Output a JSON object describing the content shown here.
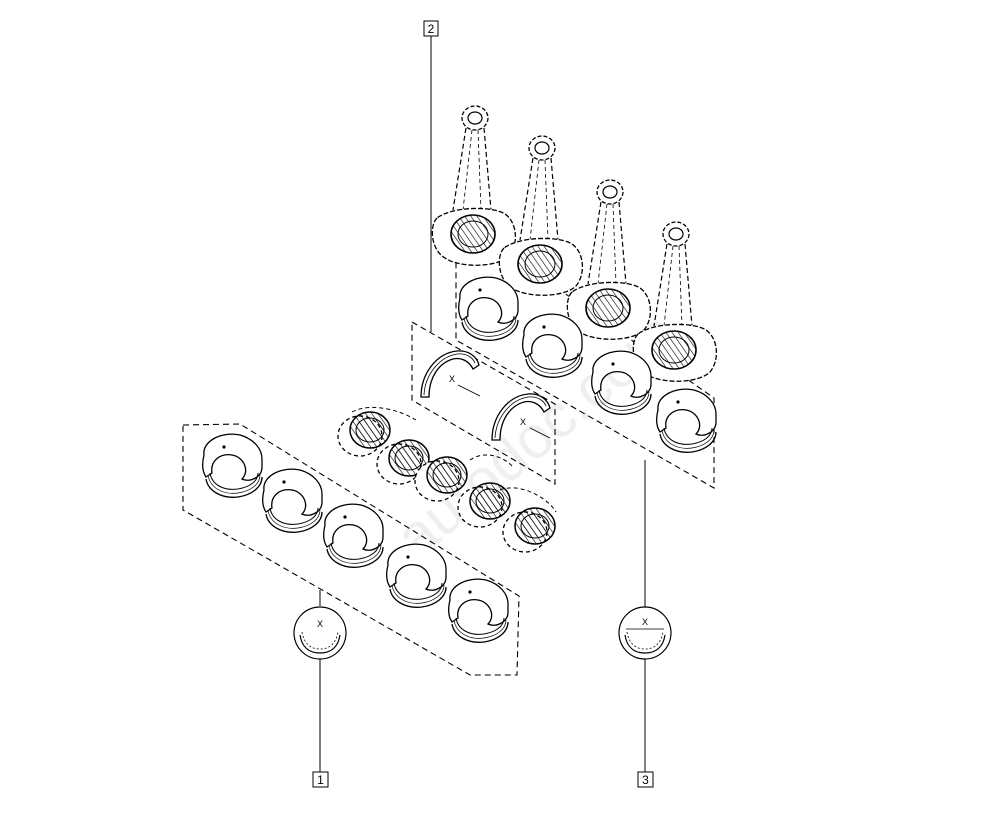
{
  "diagram": {
    "callouts": [
      {
        "id": "1",
        "label": "1"
      },
      {
        "id": "2",
        "label": "2"
      },
      {
        "id": "3",
        "label": "3"
      }
    ],
    "symbol_mark": "X",
    "watermark": "autodoc.com",
    "colors": {
      "line": "#000000",
      "background": "#ffffff"
    }
  }
}
